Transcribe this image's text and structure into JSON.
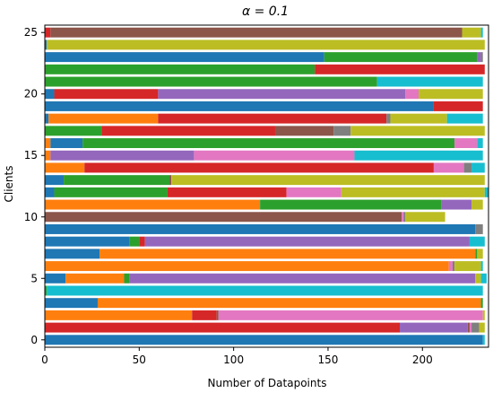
{
  "chart_data": {
    "type": "bar",
    "orientation": "horizontal",
    "stacked": true,
    "title": "α = 0.1",
    "xlabel": "Number of Datapoints",
    "ylabel": "Clients",
    "xlim": [
      0,
      235
    ],
    "ylim": [
      -0.6,
      25.6
    ],
    "xticks": [
      0,
      50,
      100,
      150,
      200
    ],
    "yticks": [
      0,
      5,
      10,
      15,
      20,
      25
    ],
    "grid": false,
    "legend": false,
    "colors": [
      "#1f77b4",
      "#ff7f0e",
      "#2ca02c",
      "#d62728",
      "#9467bd",
      "#8c564b",
      "#e377c2",
      "#7f7f7f",
      "#bcbd22",
      "#17becf"
    ],
    "clients": [
      {
        "client": 0,
        "segments": [
          [
            0,
            232
          ],
          [
            9,
            1
          ]
        ]
      },
      {
        "client": 1,
        "segments": [
          [
            3,
            188
          ],
          [
            4,
            36
          ],
          [
            5,
            1
          ],
          [
            6,
            1
          ],
          [
            7,
            4
          ],
          [
            8,
            3
          ]
        ]
      },
      {
        "client": 2,
        "segments": [
          [
            1,
            78
          ],
          [
            3,
            13
          ],
          [
            5,
            1
          ],
          [
            6,
            140
          ],
          [
            8,
            1
          ]
        ]
      },
      {
        "client": 3,
        "segments": [
          [
            0,
            28
          ],
          [
            1,
            203
          ],
          [
            2,
            1
          ]
        ]
      },
      {
        "client": 4,
        "segments": [
          [
            2,
            1
          ],
          [
            9,
            231
          ]
        ]
      },
      {
        "client": 5,
        "segments": [
          [
            0,
            11
          ],
          [
            1,
            31
          ],
          [
            2,
            3
          ],
          [
            4,
            183
          ],
          [
            8,
            3
          ],
          [
            9,
            3
          ]
        ]
      },
      {
        "client": 6,
        "segments": [
          [
            1,
            214
          ],
          [
            6,
            2
          ],
          [
            7,
            1
          ],
          [
            8,
            14
          ],
          [
            9,
            1
          ]
        ]
      },
      {
        "client": 7,
        "segments": [
          [
            0,
            29
          ],
          [
            1,
            199
          ],
          [
            2,
            1
          ],
          [
            8,
            3
          ]
        ]
      },
      {
        "client": 8,
        "segments": [
          [
            0,
            45
          ],
          [
            2,
            5
          ],
          [
            3,
            3
          ],
          [
            4,
            172
          ],
          [
            9,
            8
          ]
        ]
      },
      {
        "client": 9,
        "segments": [
          [
            0,
            228
          ],
          [
            7,
            4
          ]
        ]
      },
      {
        "client": 10,
        "segments": [
          [
            5,
            189
          ],
          [
            6,
            1
          ],
          [
            7,
            1
          ],
          [
            8,
            21
          ]
        ]
      },
      {
        "client": 11,
        "segments": [
          [
            1,
            114
          ],
          [
            2,
            96
          ],
          [
            4,
            16
          ],
          [
            8,
            6
          ]
        ]
      },
      {
        "client": 12,
        "segments": [
          [
            0,
            5
          ],
          [
            2,
            60
          ],
          [
            3,
            63
          ],
          [
            6,
            29
          ],
          [
            8,
            76
          ],
          [
            9,
            2
          ]
        ]
      },
      {
        "client": 13,
        "segments": [
          [
            0,
            10
          ],
          [
            2,
            56
          ],
          [
            5,
            1
          ],
          [
            8,
            166
          ]
        ]
      },
      {
        "client": 14,
        "segments": [
          [
            1,
            21
          ],
          [
            3,
            185
          ],
          [
            6,
            16
          ],
          [
            7,
            4
          ],
          [
            9,
            7
          ]
        ]
      },
      {
        "client": 15,
        "segments": [
          [
            1,
            3
          ],
          [
            4,
            76
          ],
          [
            6,
            85
          ],
          [
            9,
            68
          ]
        ]
      },
      {
        "client": 16,
        "segments": [
          [
            1,
            3
          ],
          [
            0,
            17
          ],
          [
            2,
            197
          ],
          [
            6,
            12
          ],
          [
            9,
            3
          ]
        ]
      },
      {
        "client": 17,
        "segments": [
          [
            2,
            30
          ],
          [
            3,
            92
          ],
          [
            5,
            31
          ],
          [
            7,
            9
          ],
          [
            8,
            71
          ]
        ]
      },
      {
        "client": 18,
        "segments": [
          [
            0,
            2
          ],
          [
            1,
            58
          ],
          [
            3,
            121
          ],
          [
            7,
            2
          ],
          [
            8,
            30
          ],
          [
            9,
            19
          ]
        ]
      },
      {
        "client": 19,
        "segments": [
          [
            0,
            206
          ],
          [
            3,
            26
          ]
        ]
      },
      {
        "client": 20,
        "segments": [
          [
            0,
            5
          ],
          [
            3,
            55
          ],
          [
            4,
            131
          ],
          [
            6,
            7
          ],
          [
            8,
            34
          ]
        ]
      },
      {
        "client": 21,
        "segments": [
          [
            2,
            176
          ],
          [
            9,
            56
          ]
        ]
      },
      {
        "client": 22,
        "segments": [
          [
            2,
            143
          ],
          [
            3,
            90
          ]
        ]
      },
      {
        "client": 23,
        "segments": [
          [
            0,
            148
          ],
          [
            2,
            81
          ],
          [
            4,
            2
          ],
          [
            7,
            1
          ]
        ]
      },
      {
        "client": 24,
        "segments": [
          [
            0,
            1
          ],
          [
            8,
            232
          ]
        ]
      },
      {
        "client": 25,
        "segments": [
          [
            3,
            3
          ],
          [
            5,
            218
          ],
          [
            8,
            10
          ],
          [
            9,
            1
          ]
        ]
      }
    ]
  }
}
